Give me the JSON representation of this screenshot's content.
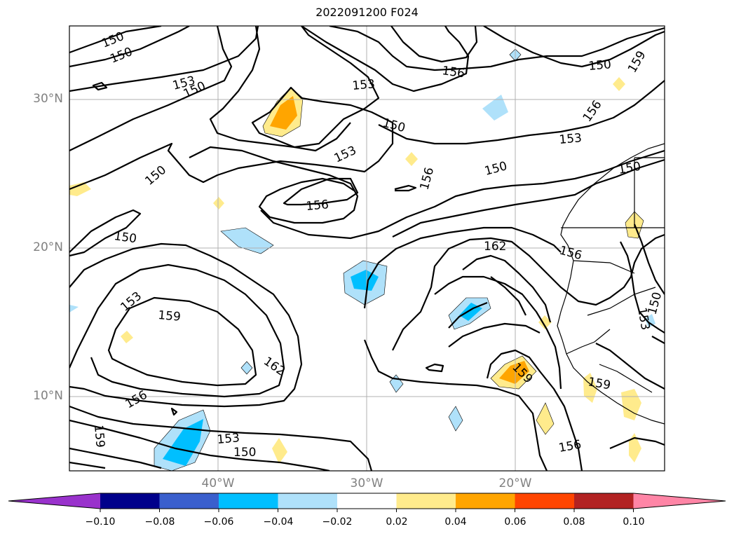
{
  "title": "2022091200 F024",
  "map": {
    "lat_labels": [
      {
        "deg": 30,
        "text": "30°N"
      },
      {
        "deg": 20,
        "text": "20°N"
      },
      {
        "deg": 10,
        "text": "10°N"
      }
    ],
    "lon_labels": [
      {
        "deg": -40,
        "text": "40°W"
      },
      {
        "deg": -30,
        "text": "30°W"
      },
      {
        "deg": -20,
        "text": "20°W"
      }
    ],
    "contour_labels": [
      "150",
      "153",
      "156",
      "159",
      "162"
    ],
    "contour_line_color": "#000000",
    "gridline_color": "#b0b0b0"
  },
  "colorbar": {
    "ticks": [
      "−0.10",
      "−0.08",
      "−0.06",
      "−0.04",
      "−0.02",
      "0.02",
      "0.04",
      "0.06",
      "0.08",
      "0.10"
    ],
    "colors": [
      "#9932cc",
      "#00008b",
      "#3a5fcd",
      "#00bfff",
      "#afe1fa",
      "#ffffff",
      "#ffeb8c",
      "#ffa500",
      "#ff4500",
      "#b22222",
      "#ff85a6"
    ]
  }
}
